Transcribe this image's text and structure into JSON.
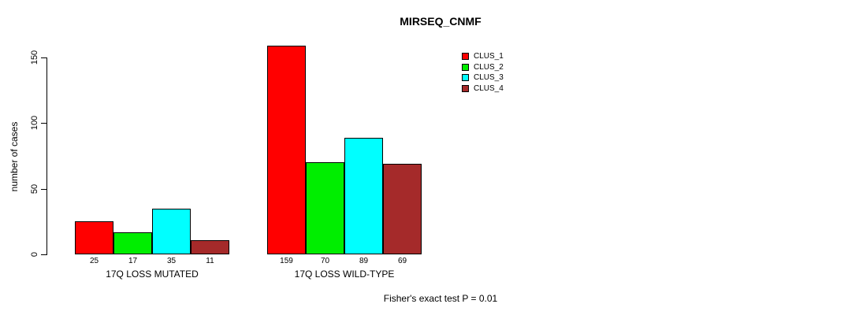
{
  "title": "MIRSEQ_CNMF",
  "footnote": "Fisher's exact test P = 0.01",
  "chart_data": {
    "type": "bar",
    "title": "MIRSEQ_CNMF",
    "xlabel": "",
    "ylabel": "number of cases",
    "ylim": [
      0,
      150
    ],
    "yticks": [
      0,
      50,
      100,
      150
    ],
    "grid": false,
    "legend_position": "top-right",
    "categories": [
      "17Q LOSS MUTATED",
      "17Q LOSS WILD-TYPE"
    ],
    "series": [
      {
        "name": "CLUS_1",
        "color": "#ff0000",
        "values": [
          25,
          159
        ]
      },
      {
        "name": "CLUS_2",
        "color": "#00ee00",
        "values": [
          17,
          70
        ]
      },
      {
        "name": "CLUS_3",
        "color": "#00ffff",
        "values": [
          35,
          89
        ]
      },
      {
        "name": "CLUS_4",
        "color": "#a52a2a",
        "values": [
          11,
          69
        ]
      }
    ],
    "value_labels_shown": true
  }
}
